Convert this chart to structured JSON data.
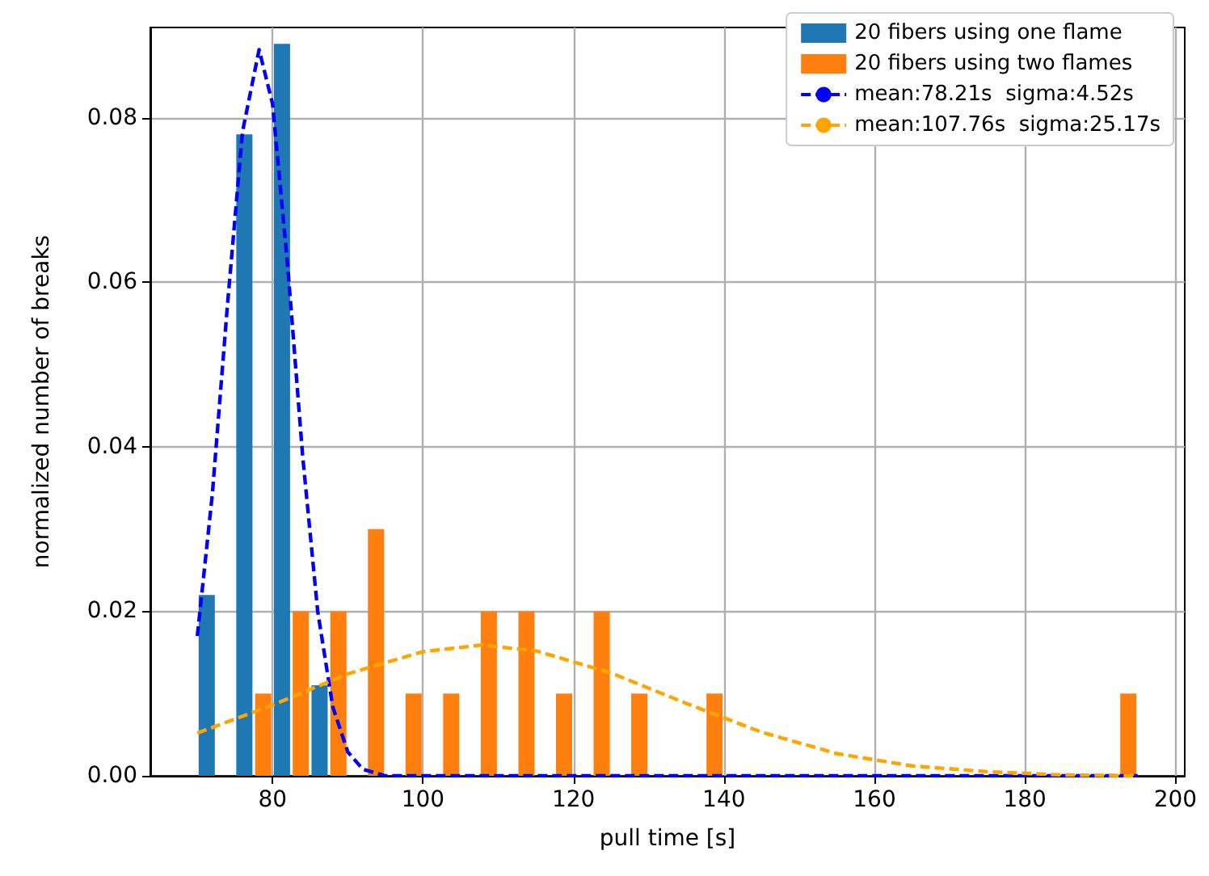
{
  "chart_data": {
    "type": "histogram",
    "xlabel": "pull time [s]",
    "ylabel": "normalized number of breaks",
    "bins": [
      70,
      75,
      80,
      85,
      90,
      95,
      100,
      105,
      110,
      115,
      120,
      125,
      130,
      135,
      140,
      145,
      150,
      155,
      160,
      165,
      170,
      175,
      180,
      185,
      190,
      195
    ],
    "series": [
      {
        "name": "20 fibers using one flame",
        "color": "#1f77b4",
        "values": [
          0.022,
          0.078,
          0.089,
          0.011,
          0,
          0,
          0,
          0,
          0,
          0,
          0,
          0,
          0,
          0,
          0,
          0,
          0,
          0,
          0,
          0,
          0,
          0,
          0,
          0,
          0
        ]
      },
      {
        "name": "20 fibers using two flames",
        "color": "#ff7f0e",
        "values": [
          0,
          0.01,
          0.02,
          0.02,
          0.03,
          0.01,
          0.01,
          0.02,
          0.02,
          0.01,
          0.02,
          0.01,
          0,
          0.01,
          0,
          0,
          0,
          0,
          0,
          0,
          0,
          0,
          0,
          0,
          0.01
        ]
      },
      {
        "name": "mean:78.21s  sigma:4.52s",
        "type": "line",
        "line_style": "dashed",
        "marker": "none",
        "color": "#0000ff",
        "x": [
          70,
          72,
          74,
          76,
          78.21,
          80,
          82,
          84,
          86,
          88,
          90,
          92,
          95,
          100,
          120,
          140,
          160,
          180,
          195
        ],
        "values": [
          0.017,
          0.0343,
          0.0572,
          0.0783,
          0.0883,
          0.0817,
          0.0621,
          0.0389,
          0.02,
          0.0084,
          0.0029,
          0.0008,
          0,
          0,
          0,
          0,
          0,
          0,
          0
        ]
      },
      {
        "name": "mean:107.76s  sigma:25.17s",
        "type": "line",
        "line_style": "dashed",
        "marker": "none",
        "color": "#ffa500",
        "x": [
          70,
          80,
          90,
          100,
          107.76,
          115,
          125,
          135,
          145,
          155,
          165,
          175,
          185,
          195
        ],
        "values": [
          0.0052,
          0.0086,
          0.0124,
          0.0151,
          0.0159,
          0.0152,
          0.0125,
          0.0088,
          0.0053,
          0.0027,
          0.0012,
          0.0005,
          0.0001,
          0
        ]
      }
    ],
    "xlim": [
      63.75,
      201.25
    ],
    "xticks": [
      80,
      100,
      120,
      140,
      160,
      180,
      200
    ],
    "ylim": [
      0,
      0.091
    ],
    "yticks": [
      {
        "value": 0,
        "label": "0.00"
      },
      {
        "value": 0.02,
        "label": "0.02"
      },
      {
        "value": 0.04,
        "label": "0.04"
      },
      {
        "value": 0.06,
        "label": "0.06"
      },
      {
        "value": 0.08,
        "label": "0.08"
      }
    ],
    "grid": true,
    "legend": "top right"
  }
}
